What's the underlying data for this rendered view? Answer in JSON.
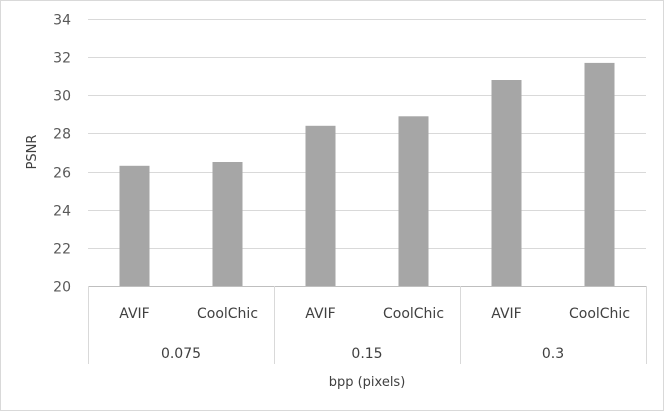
{
  "chart_data": {
    "type": "bar",
    "title": "",
    "ylabel": "PSNR",
    "xlabel": "bpp (pixels)",
    "ylim": [
      20,
      34
    ],
    "yticks": [
      20,
      22,
      24,
      26,
      28,
      30,
      32,
      34
    ],
    "grid": true,
    "bar_color": "#a6a6a6",
    "groups": [
      {
        "label": "0.075",
        "bars": [
          {
            "label": "AVIF",
            "value": 26.3
          },
          {
            "label": "CoolChic",
            "value": 26.5
          }
        ]
      },
      {
        "label": "0.15",
        "bars": [
          {
            "label": "AVIF",
            "value": 28.4
          },
          {
            "label": "CoolChic",
            "value": 28.9
          }
        ]
      },
      {
        "label": "0.3",
        "bars": [
          {
            "label": "AVIF",
            "value": 30.8
          },
          {
            "label": "CoolChic",
            "value": 31.7
          }
        ]
      }
    ]
  }
}
